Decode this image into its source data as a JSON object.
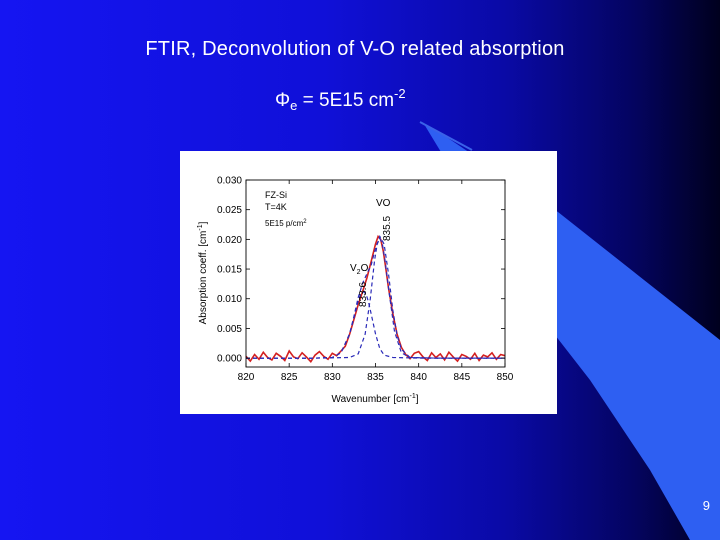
{
  "slide": {
    "title": "FTIR, Deconvolution of V-O related absorption",
    "flux": {
      "symbol": "Φ",
      "subscript": "e",
      "text": " = 5E15 cm",
      "exponent": "-2"
    },
    "page_number": "9"
  },
  "colors": {
    "background_left": "#1515f2",
    "background_right": "#00001e",
    "swoosh": "#2e5ff2",
    "measured": "#d42020",
    "fit": "#2a2ab8"
  },
  "chart_data": {
    "type": "line",
    "xlabel": "Wavenumber [cm",
    "xlabel_sup": "-1",
    "xlabel_end": "]",
    "ylabel": "Absorption coeff. [cm",
    "ylabel_sup": "-1",
    "ylabel_end": "]",
    "xlim": [
      820,
      850
    ],
    "ylim": [
      -0.0015,
      0.03
    ],
    "x_ticks": [
      "820",
      "825",
      "830",
      "835",
      "840",
      "845",
      "850"
    ],
    "y_ticks": [
      "0.000",
      "0.005",
      "0.010",
      "0.015",
      "0.020",
      "0.025",
      "0.030"
    ],
    "legend_lines": [
      "FZ-Si",
      "T=4K",
      "5E15 p/cm"
    ],
    "legend_sup": "2",
    "annotations": [
      {
        "label": "VO",
        "value": "835.5"
      },
      {
        "label": "V",
        "label_sub": "2",
        "label_end": "O",
        "value": "833.6"
      }
    ],
    "series": [
      {
        "style": "solid",
        "x": [
          820,
          820.5,
          821,
          821.5,
          822,
          822.5,
          823,
          823.5,
          824,
          824.5,
          825,
          825.5,
          826,
          826.5,
          827,
          827.5,
          828,
          828.5,
          829,
          829.5,
          830,
          830.5,
          831,
          831.5,
          832,
          832.5,
          833,
          833.5,
          834,
          834.5,
          835,
          835.3,
          835.6,
          835.9,
          836.2,
          836.5,
          837,
          837.5,
          838,
          838.5,
          839,
          839.5,
          840,
          840.5,
          841,
          841.5,
          842,
          842.5,
          843,
          843.5,
          844,
          844.5,
          845,
          845.5,
          846,
          846.5,
          847,
          847.5,
          848,
          848.5,
          849,
          849.5,
          850
        ],
        "y": [
          0.0003,
          -0.0005,
          0.0006,
          -0.0002,
          0.001,
          0.0001,
          -0.0003,
          0.0008,
          0.0003,
          -0.0004,
          0.0012,
          0.0002,
          -0.0001,
          0.0009,
          0.0002,
          -0.0006,
          0.0005,
          0.0011,
          0.0003,
          -0.0002,
          0.0008,
          0.0004,
          0.0012,
          0.002,
          0.004,
          0.0065,
          0.009,
          0.0112,
          0.0135,
          0.0163,
          0.0192,
          0.0205,
          0.02,
          0.018,
          0.015,
          0.0118,
          0.0075,
          0.004,
          0.0018,
          0.0006,
          -0.0001,
          0.0008,
          0.0011,
          0.0002,
          -0.0004,
          0.0009,
          0.0001,
          0.0007,
          -0.0003,
          0.001,
          0.0002,
          -0.0005,
          0.0006,
          0.0003,
          -0.0002,
          0.0008,
          -0.0004,
          0.0005,
          0.0002,
          0.0009,
          -0.0002,
          0.0006,
          0.0004
        ]
      },
      {
        "style": "dashed",
        "x": [
          820,
          824,
          828,
          830,
          831,
          832,
          832.5,
          833,
          833.3,
          833.6,
          833.9,
          834.2,
          834.6,
          835,
          835.5,
          836,
          837,
          840,
          844,
          850
        ],
        "y": [
          0,
          0,
          0,
          0.0001,
          0.0009,
          0.004,
          0.0068,
          0.0096,
          0.0108,
          0.0112,
          0.0108,
          0.0094,
          0.0068,
          0.0041,
          0.0016,
          0.0005,
          0.0001,
          0,
          0,
          0
        ]
      },
      {
        "style": "dashed",
        "x": [
          820,
          828,
          832,
          833,
          833.8,
          834.4,
          834.9,
          835.2,
          835.5,
          835.8,
          836.1,
          836.6,
          837.2,
          838,
          839,
          842,
          850
        ],
        "y": [
          0,
          0,
          0.0001,
          0.0007,
          0.004,
          0.01,
          0.0165,
          0.0192,
          0.0202,
          0.0192,
          0.0165,
          0.0108,
          0.0045,
          0.0009,
          0.0001,
          0,
          0
        ]
      },
      {
        "style": "dashed",
        "x": [
          820,
          828,
          830,
          831,
          832,
          832.5,
          833,
          833.5,
          834,
          834.5,
          835,
          835.5,
          836,
          836.5,
          837,
          837.5,
          838,
          839,
          842,
          850
        ],
        "y": [
          0,
          0,
          0.0001,
          0.0009,
          0.0041,
          0.007,
          0.0102,
          0.0126,
          0.0142,
          0.0157,
          0.0185,
          0.0205,
          0.0192,
          0.0142,
          0.0081,
          0.0038,
          0.0015,
          0.0001,
          0,
          0
        ]
      }
    ]
  }
}
